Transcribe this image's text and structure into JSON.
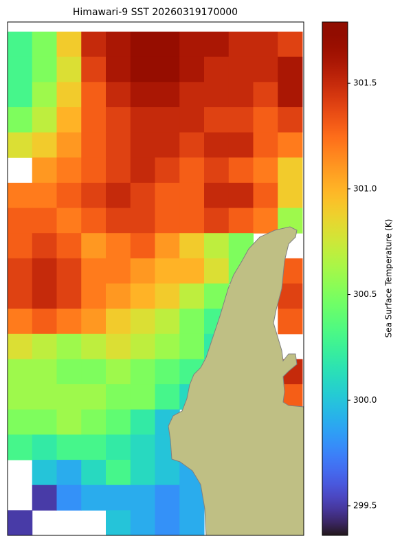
{
  "chart_data": {
    "type": "heatmap",
    "title": "Himawari-9 SST 20260319170000",
    "colorbar_label": "Sea Surface Temperature (K)",
    "colormap": "turbo",
    "clim": [
      299.36,
      301.79
    ],
    "cticks": [
      299.5,
      {
        "value": 300,
        "label": "300.0"
      },
      300.5,
      {
        "value": 301,
        "label": "301.0"
      },
      301.5
    ],
    "grid_values": [
      [
        300.3,
        300.5,
        300.9,
        301.5,
        301.6,
        301.7,
        301.7,
        301.6,
        301.6,
        301.5,
        301.5,
        301.4
      ],
      [
        300.3,
        300.5,
        300.8,
        301.4,
        301.6,
        301.7,
        301.7,
        301.6,
        301.5,
        301.5,
        301.5,
        301.6
      ],
      [
        300.3,
        300.6,
        300.9,
        301.3,
        301.5,
        301.6,
        301.6,
        301.5,
        301.5,
        301.5,
        301.4,
        301.6
      ],
      [
        300.5,
        300.7,
        301.0,
        301.3,
        301.4,
        301.5,
        301.5,
        301.5,
        301.4,
        301.4,
        301.3,
        301.4
      ],
      [
        300.8,
        300.9,
        301.1,
        301.3,
        301.4,
        301.5,
        301.5,
        301.4,
        301.5,
        301.5,
        301.3,
        301.2
      ],
      [
        null,
        301.1,
        301.2,
        301.3,
        301.4,
        301.5,
        301.4,
        301.3,
        301.4,
        301.3,
        301.2,
        300.9
      ],
      [
        301.2,
        301.2,
        301.3,
        301.4,
        301.5,
        301.4,
        301.3,
        301.3,
        301.5,
        301.5,
        301.3,
        300.9
      ],
      [
        301.3,
        301.3,
        301.2,
        301.3,
        301.4,
        301.4,
        301.3,
        301.3,
        301.4,
        301.3,
        301.2,
        300.6
      ],
      [
        301.3,
        301.4,
        301.3,
        301.1,
        301.2,
        301.3,
        301.1,
        300.9,
        300.7,
        300.5,
        null,
        null
      ],
      [
        301.4,
        301.5,
        301.4,
        301.2,
        301.2,
        301.1,
        301.0,
        301.0,
        300.8,
        300.5,
        null,
        301.3
      ],
      [
        301.4,
        301.5,
        301.4,
        301.2,
        301.1,
        301.0,
        300.9,
        300.7,
        300.5,
        null,
        null,
        301.4
      ],
      [
        301.2,
        301.3,
        301.2,
        301.1,
        300.9,
        300.8,
        300.7,
        300.5,
        300.3,
        null,
        null,
        301.3
      ],
      [
        300.8,
        300.7,
        300.6,
        300.7,
        300.8,
        300.7,
        300.6,
        300.5,
        300.2,
        null,
        null,
        null
      ],
      [
        300.6,
        300.6,
        300.5,
        300.5,
        300.6,
        300.5,
        300.4,
        300.3,
        null,
        null,
        null,
        301.5
      ],
      [
        300.6,
        300.6,
        300.6,
        300.6,
        300.5,
        300.5,
        300.3,
        300.1,
        null,
        null,
        null,
        301.3
      ],
      [
        300.5,
        300.5,
        300.6,
        300.5,
        300.4,
        300.2,
        300.0,
        null,
        null,
        null,
        null,
        null
      ],
      [
        300.3,
        300.2,
        300.3,
        300.3,
        300.2,
        300.1,
        300.0,
        null,
        null,
        null,
        null,
        null
      ],
      [
        null,
        300.0,
        299.9,
        300.1,
        300.3,
        300.1,
        300.0,
        299.9,
        null,
        null,
        null,
        null
      ],
      [
        null,
        299.5,
        299.8,
        299.9,
        299.9,
        299.9,
        299.8,
        299.9,
        null,
        null,
        null,
        null
      ],
      [
        299.5,
        null,
        null,
        null,
        300.0,
        299.9,
        299.8,
        299.9,
        null,
        null,
        null,
        null
      ]
    ]
  }
}
